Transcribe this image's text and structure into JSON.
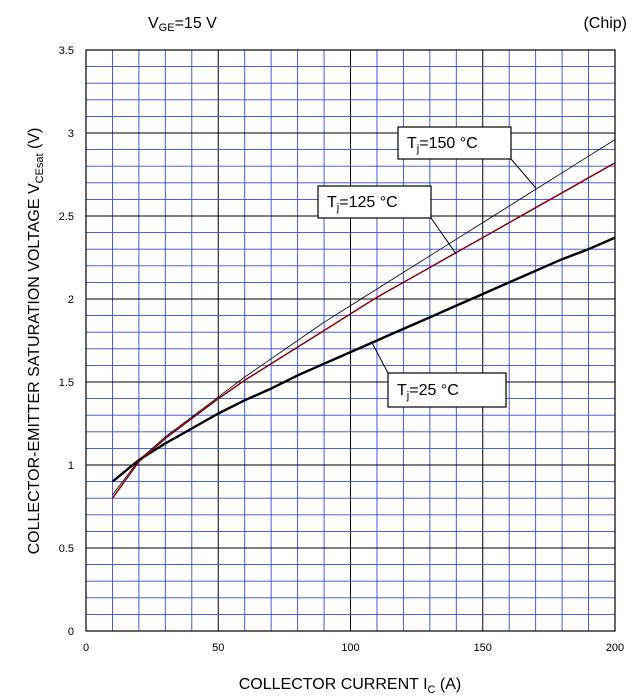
{
  "header": {
    "condition": {
      "main": "V",
      "sub": "GE",
      "rest": "=15 V"
    },
    "scope": "(Chip)"
  },
  "chart_data": {
    "type": "line",
    "xlabel": {
      "main": "COLLECTOR CURRENT   I",
      "sub": "C",
      "rest": "   (A)"
    },
    "ylabel": {
      "main": "COLLECTOR-EMITTER SATURATION VOLTAGE    V",
      "sub": "CEsat",
      "rest": "    (V)"
    },
    "xlim": [
      0,
      200
    ],
    "ylim": [
      0,
      3.5
    ],
    "x_ticks": [
      "0",
      "50",
      "100",
      "150",
      "200"
    ],
    "y_ticks": [
      "0",
      "0.5",
      "1",
      "1.5",
      "2",
      "2.5",
      "3",
      "3.5"
    ],
    "grid": true,
    "series": [
      {
        "name": {
          "main": "T",
          "sub": "j",
          "rest": "=25 °C"
        },
        "color": "#000000",
        "x": [
          10,
          20,
          30,
          40,
          50,
          60,
          70,
          80,
          90,
          100,
          110,
          120,
          130,
          140,
          150,
          160,
          170,
          180,
          190,
          200
        ],
        "y": [
          0.9,
          1.03,
          1.13,
          1.22,
          1.31,
          1.39,
          1.46,
          1.54,
          1.61,
          1.68,
          1.75,
          1.82,
          1.89,
          1.96,
          2.03,
          2.1,
          2.17,
          2.24,
          2.3,
          2.37
        ]
      },
      {
        "name": {
          "main": "T",
          "sub": "j",
          "rest": "=125 °C"
        },
        "color": "#8b0000",
        "x": [
          10,
          20,
          30,
          40,
          50,
          60,
          70,
          80,
          90,
          100,
          110,
          120,
          130,
          140,
          150,
          160,
          170,
          180,
          190,
          200
        ],
        "y": [
          0.8,
          1.02,
          1.16,
          1.28,
          1.4,
          1.51,
          1.61,
          1.71,
          1.81,
          1.91,
          2.01,
          2.1,
          2.19,
          2.28,
          2.37,
          2.46,
          2.55,
          2.64,
          2.73,
          2.82
        ]
      },
      {
        "name": {
          "main": "T",
          "sub": "j",
          "rest": "=150 °C"
        },
        "color": "#000000",
        "x": [
          10,
          20,
          30,
          40,
          50,
          60,
          70,
          80,
          90,
          100,
          110,
          120,
          130,
          140,
          150,
          160,
          170,
          180,
          190,
          200
        ],
        "y": [
          0.82,
          1.03,
          1.17,
          1.29,
          1.41,
          1.53,
          1.64,
          1.75,
          1.86,
          1.96,
          2.06,
          2.16,
          2.26,
          2.36,
          2.46,
          2.56,
          2.66,
          2.76,
          2.86,
          2.96
        ]
      }
    ],
    "annotations": [
      {
        "series": 2,
        "x": 170,
        "y": 2.67
      },
      {
        "series": 1,
        "x": 140,
        "y": 2.27
      },
      {
        "series": 0,
        "x": 108,
        "y": 1.74
      }
    ]
  }
}
